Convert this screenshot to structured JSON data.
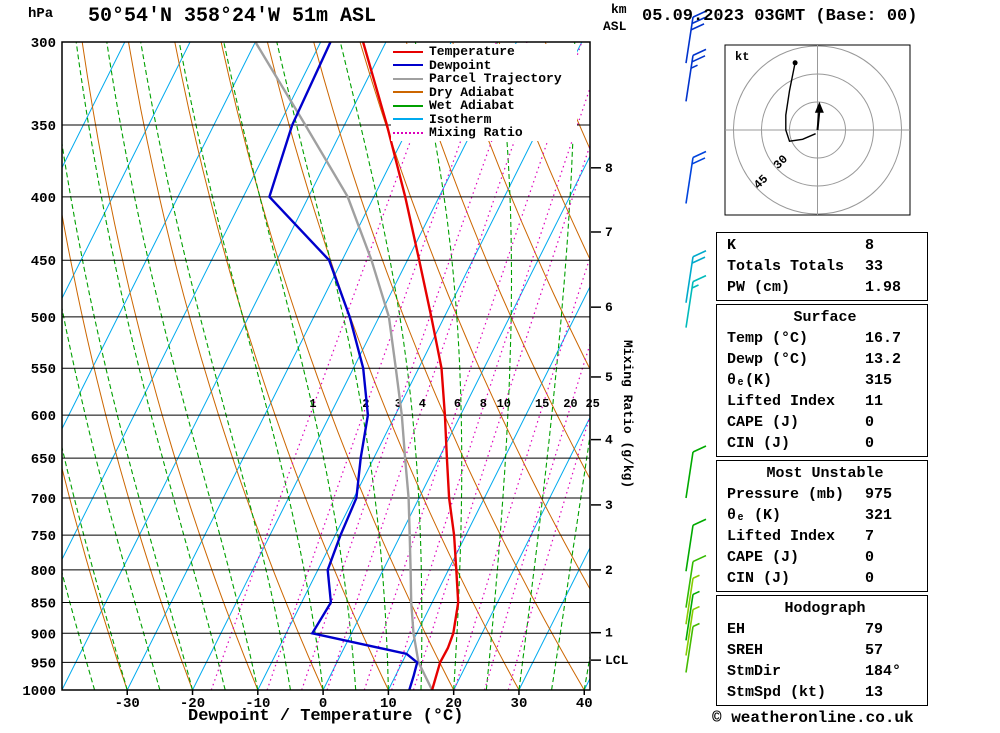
{
  "header": {
    "pressure_unit": "hPa",
    "title": "50°54'N 358°24'W 51m ASL",
    "datetime": "05.09.2023 03GMT (Base: 00)",
    "km_label": "km",
    "asl_label": "ASL"
  },
  "footer": {
    "copyright": "© weatheronline.co.uk"
  },
  "legend": {
    "items": [
      {
        "label": "Temperature",
        "color": "#e60000",
        "style": "solid"
      },
      {
        "label": "Dewpoint",
        "color": "#0000cc",
        "style": "solid"
      },
      {
        "label": "Parcel Trajectory",
        "color": "#a0a0a0",
        "style": "solid"
      },
      {
        "label": "Dry Adiabat",
        "color": "#cc6600",
        "style": "solid"
      },
      {
        "label": "Wet Adiabat",
        "color": "#00a000",
        "style": "solid"
      },
      {
        "label": "Isotherm",
        "color": "#00aaee",
        "style": "solid"
      },
      {
        "label": "Mixing Ratio",
        "color": "#dd00bb",
        "style": "dotted"
      }
    ]
  },
  "chart_data": {
    "type": "skewt-logp-sounding",
    "xlabel": "Dewpoint / Temperature (°C)",
    "mixing_ratio_axis_label": "Mixing Ratio (g/kg)",
    "pressure_axis_hPa": [
      300,
      350,
      400,
      450,
      500,
      550,
      600,
      650,
      700,
      750,
      800,
      850,
      900,
      950,
      1000
    ],
    "temp_axis_C": [
      -30,
      -20,
      -10,
      0,
      10,
      20,
      30,
      40
    ],
    "km_ticks": [
      {
        "label": "8",
        "p": 379
      },
      {
        "label": "7",
        "p": 427
      },
      {
        "label": "6",
        "p": 491
      },
      {
        "label": "5",
        "p": 559
      },
      {
        "label": "4",
        "p": 628
      },
      {
        "label": "3",
        "p": 709
      },
      {
        "label": "2",
        "p": 800
      },
      {
        "label": "1",
        "p": 899
      },
      {
        "label": "LCL",
        "p": 946
      }
    ],
    "mixing_ratio_lines_g_kg": [
      1,
      2,
      3,
      4,
      6,
      8,
      10,
      15,
      20,
      25
    ],
    "isotherms_C": {
      "min": -100,
      "max": 40,
      "step": 10
    },
    "dry_adiabats_C": {
      "min": -60,
      "max": 100,
      "step": 10
    },
    "wet_adiabats_C": {
      "min": -45,
      "max": 40,
      "step": 5
    },
    "temperature_profile_p_T": [
      [
        1000,
        16.7
      ],
      [
        950,
        15.8
      ],
      [
        925,
        15.9
      ],
      [
        900,
        15.6
      ],
      [
        850,
        14.0
      ],
      [
        800,
        11.2
      ],
      [
        750,
        8.2
      ],
      [
        700,
        4.6
      ],
      [
        650,
        1.2
      ],
      [
        600,
        -2.4
      ],
      [
        550,
        -6.5
      ],
      [
        500,
        -12.0
      ],
      [
        450,
        -18.2
      ],
      [
        400,
        -25.2
      ],
      [
        350,
        -33.5
      ],
      [
        300,
        -43.5
      ]
    ],
    "dewpoint_profile_p_T": [
      [
        1000,
        13.2
      ],
      [
        975,
        12.8
      ],
      [
        950,
        12.3
      ],
      [
        935,
        10.0
      ],
      [
        900,
        -6.0
      ],
      [
        850,
        -5.5
      ],
      [
        800,
        -8.5
      ],
      [
        750,
        -9.2
      ],
      [
        700,
        -9.6
      ],
      [
        650,
        -12.0
      ],
      [
        600,
        -14.2
      ],
      [
        550,
        -18.5
      ],
      [
        500,
        -24.5
      ],
      [
        450,
        -32.0
      ],
      [
        400,
        -46.0
      ],
      [
        350,
        -48.0
      ],
      [
        300,
        -48.5
      ]
    ],
    "parcel_profile_p_T": [
      [
        1000,
        16.7
      ],
      [
        950,
        12.5
      ],
      [
        900,
        9.5
      ],
      [
        850,
        6.8
      ],
      [
        800,
        4.2
      ],
      [
        750,
        1.4
      ],
      [
        700,
        -1.6
      ],
      [
        650,
        -5.2
      ],
      [
        600,
        -9.0
      ],
      [
        550,
        -13.5
      ],
      [
        500,
        -18.5
      ],
      [
        450,
        -25.5
      ],
      [
        400,
        -34.0
      ],
      [
        350,
        -46.0
      ],
      [
        300,
        -60.0
      ]
    ],
    "wind_barbs": [
      {
        "p": 312,
        "kt": 30,
        "color": "#0033cc"
      },
      {
        "p": 335,
        "kt": 25,
        "color": "#0033cc"
      },
      {
        "p": 405,
        "kt": 20,
        "color": "#0044dd"
      },
      {
        "p": 487,
        "kt": 20,
        "color": "#00aacc"
      },
      {
        "p": 510,
        "kt": 15,
        "color": "#00bbbb"
      },
      {
        "p": 700,
        "kt": 10,
        "color": "#00aa00"
      },
      {
        "p": 802,
        "kt": 10,
        "color": "#00aa00"
      },
      {
        "p": 858,
        "kt": 10,
        "color": "#33bb00"
      },
      {
        "p": 885,
        "kt": 7,
        "color": "#88cc00"
      },
      {
        "p": 912,
        "kt": 8,
        "color": "#00aa00"
      },
      {
        "p": 938,
        "kt": 5,
        "color": "#88cc00"
      },
      {
        "p": 968,
        "kt": 8,
        "color": "#44bb00"
      }
    ],
    "colors": {
      "temperature": "#e60000",
      "dewpoint": "#0000cc",
      "parcel": "#a0a0a0",
      "dry_adiabat": "#cc6600",
      "wet_adiabat": "#00a000",
      "isotherm": "#00aaee",
      "mixing_ratio": "#dd00bb",
      "grid": "#000000"
    }
  },
  "hodograph": {
    "unit_label": "kt",
    "rings_kt": [
      15,
      30,
      45
    ],
    "ring_labels": [
      {
        "text": "45",
        "r_kt": 45
      },
      {
        "text": "30",
        "r_kt": 30
      }
    ],
    "trace_kt": [
      [
        -12,
        36
      ],
      [
        -15,
        21
      ],
      [
        -17,
        8
      ],
      [
        -17,
        0
      ],
      [
        -15,
        -6
      ],
      [
        -8,
        -5
      ],
      [
        -1,
        -2
      ]
    ],
    "storm_vector_kt": [
      1,
      13
    ]
  },
  "tables": [
    {
      "header": null,
      "rows": [
        [
          "K",
          "8"
        ],
        [
          "Totals Totals",
          "33"
        ],
        [
          "PW (cm)",
          "1.98"
        ]
      ]
    },
    {
      "header": "Surface",
      "rows": [
        [
          "Temp (°C)",
          "16.7"
        ],
        [
          "Dewp (°C)",
          "13.2"
        ],
        [
          "θₑ(K)",
          "315"
        ],
        [
          "Lifted Index",
          "11"
        ],
        [
          "CAPE (J)",
          "0"
        ],
        [
          "CIN (J)",
          "0"
        ]
      ]
    },
    {
      "header": "Most Unstable",
      "rows": [
        [
          "Pressure (mb)",
          "975"
        ],
        [
          "θₑ (K)",
          "321"
        ],
        [
          "Lifted Index",
          "7"
        ],
        [
          "CAPE (J)",
          "0"
        ],
        [
          "CIN (J)",
          "0"
        ]
      ]
    },
    {
      "header": "Hodograph",
      "rows": [
        [
          "EH",
          "79"
        ],
        [
          "SREH",
          "57"
        ],
        [
          "StmDir",
          "184°"
        ],
        [
          "StmSpd (kt)",
          "13"
        ]
      ]
    }
  ]
}
